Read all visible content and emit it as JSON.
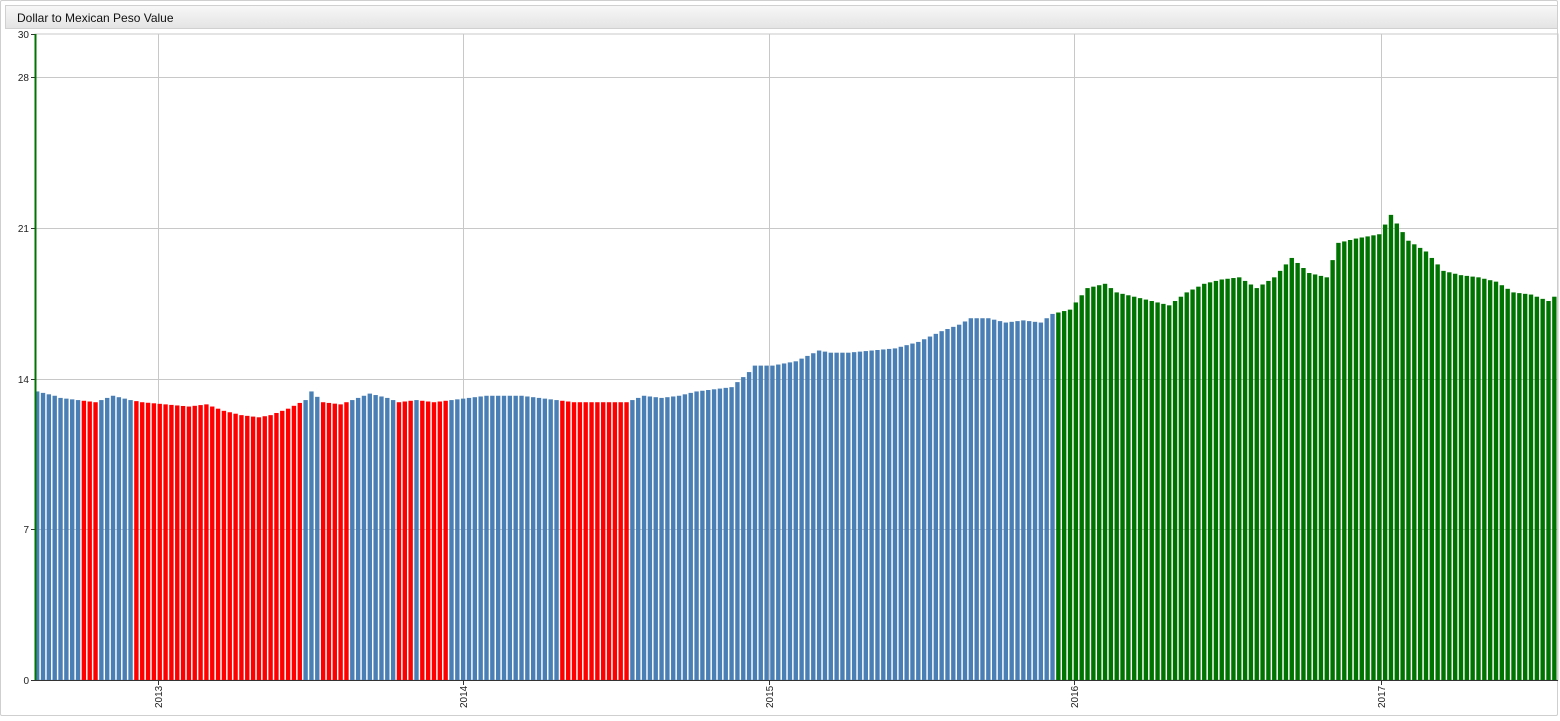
{
  "widget": {
    "title": "Dollar to Mexican Peso Value"
  },
  "colors": {
    "low": "#ff0000",
    "mid": "#4a7fb5",
    "high": "#007400",
    "axis_left": "#007400",
    "grid": "#c8c8c8"
  },
  "chart_data": {
    "type": "bar",
    "title": "Dollar to Mexican Peso Value",
    "xlabel": "",
    "ylabel": "",
    "ylim": [
      0,
      30
    ],
    "y_ticks": [
      "0",
      "7",
      "14",
      "21",
      "28",
      "30"
    ],
    "x_ticks": [
      "2013",
      "2014",
      "2015",
      "2016",
      "2017"
    ],
    "x_range": [
      "2012-08-07",
      "2017-08-01"
    ],
    "frequency": "weekly",
    "grid": true,
    "series": [
      {
        "color_rule": "red when below 13.0, green when above 17.0, otherwise blue",
        "points": [
          [
            "2012-08-07",
            13.4
          ],
          [
            "2012-08-28",
            13.2
          ],
          [
            "2012-09-04",
            13.1
          ],
          [
            "2012-09-25",
            13.0
          ],
          [
            "2012-10-16",
            12.9
          ],
          [
            "2012-11-06",
            13.2
          ],
          [
            "2012-11-27",
            13.0
          ],
          [
            "2012-12-11",
            12.9
          ],
          [
            "2013-01-08",
            12.8
          ],
          [
            "2013-02-05",
            12.7
          ],
          [
            "2013-02-26",
            12.8
          ],
          [
            "2013-03-19",
            12.5
          ],
          [
            "2013-04-09",
            12.3
          ],
          [
            "2013-04-30",
            12.2
          ],
          [
            "2013-05-14",
            12.3
          ],
          [
            "2013-06-04",
            12.6
          ],
          [
            "2013-06-25",
            13.0
          ],
          [
            "2013-07-02",
            13.4
          ],
          [
            "2013-07-16",
            12.9
          ],
          [
            "2013-08-06",
            12.8
          ],
          [
            "2013-08-20",
            13.0
          ],
          [
            "2013-09-10",
            13.3
          ],
          [
            "2013-10-01",
            13.1
          ],
          [
            "2013-10-15",
            12.9
          ],
          [
            "2013-11-05",
            13.0
          ],
          [
            "2013-11-26",
            12.9
          ],
          [
            "2013-12-17",
            13.0
          ],
          [
            "2014-01-07",
            13.1
          ],
          [
            "2014-01-28",
            13.2
          ],
          [
            "2014-02-18",
            13.2
          ],
          [
            "2014-03-11",
            13.2
          ],
          [
            "2014-04-01",
            13.1
          ],
          [
            "2014-04-22",
            13.0
          ],
          [
            "2014-05-13",
            12.9
          ],
          [
            "2014-06-03",
            12.9
          ],
          [
            "2014-06-24",
            12.9
          ],
          [
            "2014-07-15",
            12.9
          ],
          [
            "2014-08-05",
            13.2
          ],
          [
            "2014-08-26",
            13.1
          ],
          [
            "2014-09-16",
            13.2
          ],
          [
            "2014-10-07",
            13.4
          ],
          [
            "2014-10-28",
            13.5
          ],
          [
            "2014-11-18",
            13.6
          ],
          [
            "2014-12-09",
            14.3
          ],
          [
            "2014-12-16",
            14.6
          ],
          [
            "2015-01-06",
            14.6
          ],
          [
            "2015-02-03",
            14.8
          ],
          [
            "2015-03-03",
            15.3
          ],
          [
            "2015-03-17",
            15.2
          ],
          [
            "2015-04-07",
            15.2
          ],
          [
            "2015-05-05",
            15.3
          ],
          [
            "2015-06-02",
            15.4
          ],
          [
            "2015-06-30",
            15.7
          ],
          [
            "2015-07-28",
            16.2
          ],
          [
            "2015-08-18",
            16.5
          ],
          [
            "2015-09-01",
            16.8
          ],
          [
            "2015-09-22",
            16.8
          ],
          [
            "2015-10-13",
            16.6
          ],
          [
            "2015-11-03",
            16.7
          ],
          [
            "2015-11-24",
            16.6
          ],
          [
            "2015-12-08",
            17.0
          ],
          [
            "2015-12-29",
            17.2
          ],
          [
            "2016-01-19",
            18.2
          ],
          [
            "2016-02-09",
            18.4
          ],
          [
            "2016-02-23",
            18.0
          ],
          [
            "2016-03-15",
            17.8
          ],
          [
            "2016-04-05",
            17.6
          ],
          [
            "2016-04-26",
            17.4
          ],
          [
            "2016-05-17",
            18.0
          ],
          [
            "2016-06-07",
            18.4
          ],
          [
            "2016-06-28",
            18.6
          ],
          [
            "2016-07-19",
            18.7
          ],
          [
            "2016-08-09",
            18.2
          ],
          [
            "2016-08-30",
            18.7
          ],
          [
            "2016-09-20",
            19.6
          ],
          [
            "2016-10-11",
            18.9
          ],
          [
            "2016-11-01",
            18.7
          ],
          [
            "2016-11-15",
            20.3
          ],
          [
            "2016-12-06",
            20.5
          ],
          [
            "2017-01-03",
            20.7
          ],
          [
            "2017-01-17",
            21.6
          ],
          [
            "2017-02-07",
            20.4
          ],
          [
            "2017-02-28",
            19.9
          ],
          [
            "2017-03-21",
            19.0
          ],
          [
            "2017-04-11",
            18.8
          ],
          [
            "2017-05-02",
            18.7
          ],
          [
            "2017-05-23",
            18.5
          ],
          [
            "2017-06-13",
            18.0
          ],
          [
            "2017-07-04",
            17.9
          ],
          [
            "2017-07-25",
            17.6
          ],
          [
            "2017-08-01",
            17.8
          ]
        ]
      }
    ]
  }
}
